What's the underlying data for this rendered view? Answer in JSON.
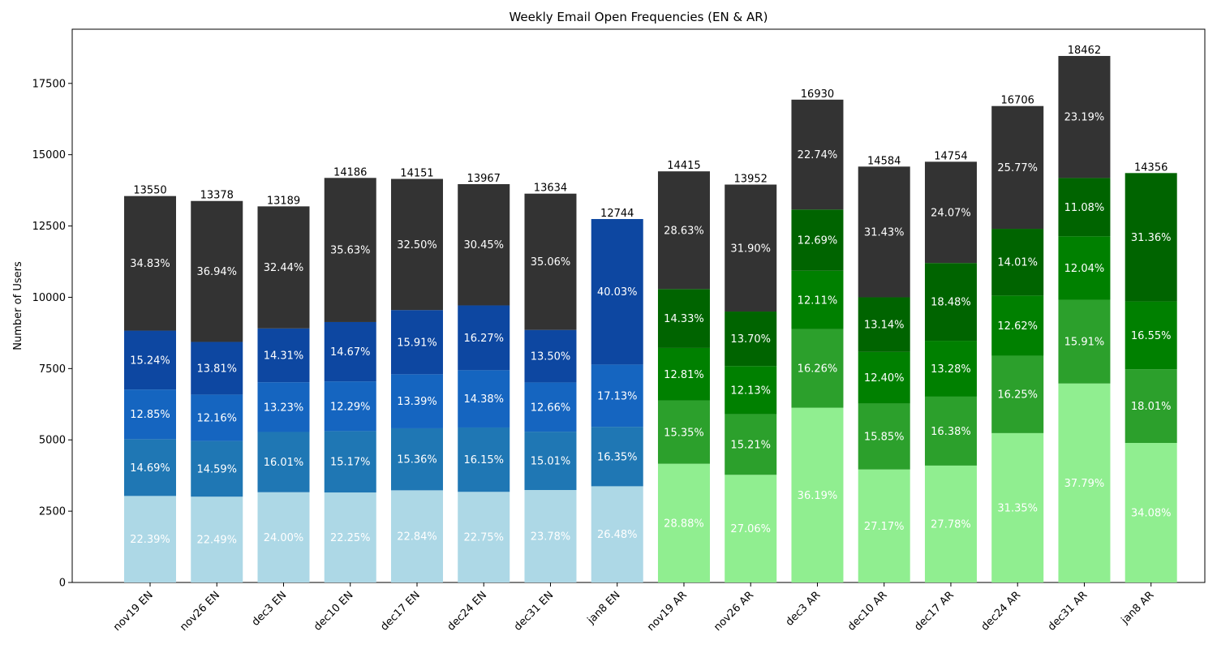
{
  "chart_data": {
    "type": "bar",
    "stacked": true,
    "title": "Weekly Email Open Frequencies (EN & AR)",
    "xlabel": "",
    "ylabel": "Number of Users",
    "ylim": [
      0,
      19400
    ],
    "yticks": [
      0,
      2500,
      5000,
      7500,
      10000,
      12500,
      15000,
      17500
    ],
    "grid": false,
    "legend": "none",
    "categories": [
      "nov19 EN",
      "nov26 EN",
      "dec3 EN",
      "dec10 EN",
      "dec17 EN",
      "dec24 EN",
      "dec31 EN",
      "jan8 EN",
      "nov19 AR",
      "nov26 AR",
      "dec3 AR",
      "dec10 AR",
      "dec17 AR",
      "dec24 AR",
      "dec31 AR",
      "jan8 AR"
    ],
    "totals": [
      13550,
      13378,
      13189,
      14186,
      14151,
      13967,
      13634,
      12744,
      14415,
      13952,
      16930,
      14584,
      14754,
      16706,
      18462,
      14356
    ],
    "segments": [
      {
        "values": [
          3034,
          3009,
          3165,
          3156,
          3232,
          3178,
          3242,
          3374
        ],
        "percents": [
          "22.39%",
          "22.49%",
          "24.00%",
          "22.25%",
          "22.84%",
          "22.75%",
          "23.78%",
          "26.48%"
        ],
        "colors": [
          "#add8e6",
          "#add8e6",
          "#add8e6",
          "#add8e6",
          "#add8e6",
          "#add8e6",
          "#add8e6",
          "#add8e6"
        ]
      },
      {
        "values": [
          1991,
          1952,
          2112,
          2152,
          2174,
          2256,
          2046,
          2084
        ],
        "percents": [
          "14.69%",
          "14.59%",
          "16.01%",
          "15.17%",
          "15.36%",
          "16.15%",
          "15.01%",
          "16.35%"
        ],
        "colors": [
          "#1f77b4",
          "#1f77b4",
          "#1f77b4",
          "#1f77b4",
          "#1f77b4",
          "#1f77b4",
          "#1f77b4",
          "#1f77b4"
        ]
      },
      {
        "values": [
          1741,
          1627,
          1745,
          1743,
          1895,
          2009,
          1726,
          2183
        ],
        "percents": [
          "12.85%",
          "12.16%",
          "13.23%",
          "12.29%",
          "13.39%",
          "14.38%",
          "12.66%",
          "17.13%"
        ],
        "colors": [
          "#1565c0",
          "#1565c0",
          "#1565c0",
          "#1565c0",
          "#1565c0",
          "#1565c0",
          "#1565c0",
          "#1565c0"
        ]
      },
      {
        "values": [
          2065,
          1847,
          1887,
          2081,
          2251,
          2272,
          1841,
          5103
        ],
        "percents": [
          "15.24%",
          "13.81%",
          "14.31%",
          "14.67%",
          "15.91%",
          "16.27%",
          "13.50%",
          "40.03%"
        ],
        "colors": [
          "#0d47a1",
          "#0d47a1",
          "#0d47a1",
          "#0d47a1",
          "#0d47a1",
          "#0d47a1",
          "#0d47a1",
          "#0d47a1"
        ]
      },
      {
        "values": [
          4719,
          4942,
          4279,
          5054,
          4599,
          4253,
          4779,
          0
        ],
        "percents": [
          "34.83%",
          "36.94%",
          "32.44%",
          "35.63%",
          "32.50%",
          "30.45%",
          "35.06%",
          ""
        ],
        "colors": [
          "#333333",
          "#333333",
          "#333333",
          "#333333",
          "#333333",
          "#333333",
          "#333333",
          "#333333"
        ]
      }
    ],
    "segments_ar": [
      {
        "values": [
          4163,
          3775,
          6127,
          3963,
          4099,
          5237,
          6977,
          4893
        ],
        "percents": [
          "28.88%",
          "27.06%",
          "36.19%",
          "27.17%",
          "27.78%",
          "31.35%",
          "37.79%",
          "34.08%"
        ],
        "colors": [
          "#90ee90",
          "#90ee90",
          "#90ee90",
          "#90ee90",
          "#90ee90",
          "#90ee90",
          "#90ee90",
          "#90ee90"
        ]
      },
      {
        "values": [
          2213,
          2122,
          2753,
          2312,
          2417,
          2715,
          2937,
          2585
        ],
        "percents": [
          "15.35%",
          "15.21%",
          "16.26%",
          "15.85%",
          "16.38%",
          "16.25%",
          "15.91%",
          "18.01%"
        ],
        "colors": [
          "#2ca02c",
          "#2ca02c",
          "#2ca02c",
          "#2ca02c",
          "#2ca02c",
          "#2ca02c",
          "#2ca02c",
          "#2ca02c"
        ]
      },
      {
        "values": [
          1847,
          1692,
          2050,
          1808,
          1959,
          2108,
          2223,
          2376
        ],
        "percents": [
          "12.81%",
          "12.13%",
          "12.11%",
          "12.40%",
          "13.28%",
          "12.62%",
          "12.04%",
          "16.55%"
        ],
        "colors": [
          "#008000",
          "#008000",
          "#008000",
          "#008000",
          "#008000",
          "#008000",
          "#008000",
          "#008000"
        ]
      },
      {
        "values": [
          2066,
          1911,
          2148,
          1916,
          2727,
          2341,
          2046,
          4502
        ],
        "percents": [
          "14.33%",
          "13.70%",
          "12.69%",
          "13.14%",
          "18.48%",
          "14.01%",
          "11.08%",
          "31.36%"
        ],
        "colors": [
          "#006400",
          "#006400",
          "#006400",
          "#006400",
          "#006400",
          "#006400",
          "#006400",
          "#006400"
        ]
      },
      {
        "values": [
          4127,
          4452,
          3852,
          4584,
          3551,
          4305,
          4279,
          0
        ],
        "percents": [
          "28.63%",
          "31.90%",
          "22.74%",
          "31.43%",
          "24.07%",
          "25.77%",
          "23.19%",
          ""
        ],
        "colors": [
          "#333333",
          "#333333",
          "#333333",
          "#333333",
          "#333333",
          "#333333",
          "#333333",
          "#333333"
        ]
      }
    ]
  }
}
